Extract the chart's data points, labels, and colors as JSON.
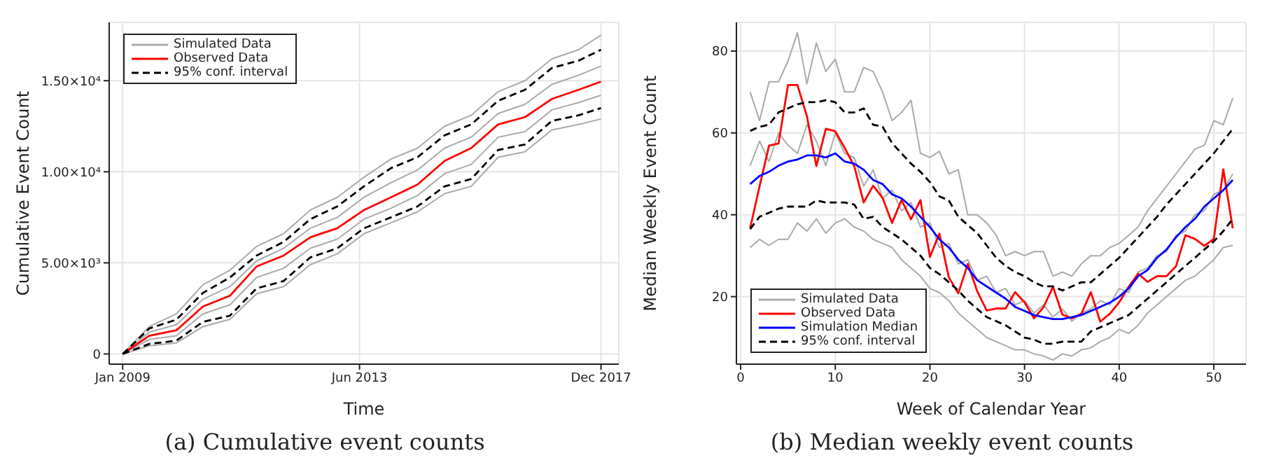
{
  "chart_data": [
    {
      "type": "line",
      "title": "(a) Cumulative event counts",
      "xlabel": "Time",
      "ylabel": "Cumulative Event Count",
      "x": [
        "2009-01",
        "2009-07",
        "2010-01",
        "2010-07",
        "2011-01",
        "2011-07",
        "2012-01",
        "2012-07",
        "2013-01",
        "2013-07",
        "2014-01",
        "2014-07",
        "2015-01",
        "2015-07",
        "2016-01",
        "2016-07",
        "2017-01",
        "2017-07",
        "2017-12"
      ],
      "xlim": [
        "2008-10",
        "2018-04"
      ],
      "xticks": [
        {
          "value": "2009-01",
          "label": "Jan 2009"
        },
        {
          "value": "2013-06",
          "label": "Jun 2013"
        },
        {
          "value": "2017-12",
          "label": "Dec 2017"
        }
      ],
      "ylim": [
        -560,
        18200
      ],
      "yticks": [
        0,
        {
          "value": 5000,
          "label": "5.00×10³"
        },
        {
          "value": 10000,
          "label": "1.00×10⁴"
        },
        {
          "value": 15000,
          "label": "1.50×10⁴"
        }
      ],
      "grid": true,
      "legend": "top left",
      "marker": "none",
      "series": [
        {
          "name": "Simulated Data",
          "color": "#aaaaaa",
          "line_style": "solid",
          "values": [
            0,
            1500,
            2200,
            3800,
            4600,
            5900,
            6600,
            7900,
            8600,
            9700,
            10700,
            11300,
            12500,
            13100,
            14400,
            15000,
            16200,
            16700,
            17500
          ]
        },
        {
          "color": "#aaaaaa",
          "line_style": "solid",
          "values": [
            0,
            1200,
            1600,
            3000,
            3700,
            5100,
            5800,
            6900,
            7500,
            8600,
            9400,
            10100,
            11300,
            11900,
            13200,
            13700,
            14800,
            15300,
            15800
          ]
        },
        {
          "color": "#aaaaaa",
          "line_style": "solid",
          "values": [
            0,
            800,
            1000,
            2200,
            2700,
            4200,
            4700,
            5800,
            6300,
            7400,
            8000,
            8700,
            9900,
            10400,
            11900,
            12200,
            13400,
            13800,
            14200
          ]
        },
        {
          "color": "#aaaaaa",
          "line_style": "solid",
          "values": [
            0,
            450,
            600,
            1500,
            1900,
            3300,
            3700,
            4900,
            5500,
            6600,
            7200,
            7800,
            8800,
            9200,
            10800,
            11100,
            12300,
            12600,
            12900
          ]
        },
        {
          "name": "Observed Data",
          "color": "#ff0000",
          "line_style": "solid",
          "values": [
            0,
            1000,
            1300,
            2600,
            3200,
            4800,
            5400,
            6400,
            6900,
            7900,
            8600,
            9300,
            10600,
            11300,
            12600,
            13000,
            14000,
            14500,
            14950
          ]
        },
        {
          "name": "95% conf. interval",
          "color": "#000000",
          "line_style": "dashed",
          "values": [
            0,
            1400,
            1880,
            3350,
            4200,
            5400,
            6150,
            7400,
            8100,
            9200,
            10200,
            10800,
            12000,
            12600,
            13900,
            14500,
            15700,
            16100,
            16700
          ]
        },
        {
          "color": "#000000",
          "line_style": "dashed",
          "values": [
            0,
            550,
            730,
            1760,
            2100,
            3600,
            4000,
            5300,
            5800,
            6900,
            7500,
            8100,
            9200,
            9600,
            11200,
            11500,
            12800,
            13100,
            13500
          ]
        }
      ]
    },
    {
      "type": "line",
      "title": "(b) Median weekly event counts",
      "xlabel": "Week of Calendar Year",
      "ylabel": "Median Weekly Event Count",
      "x": [
        1,
        2,
        3,
        4,
        5,
        6,
        7,
        8,
        9,
        10,
        11,
        12,
        13,
        14,
        15,
        16,
        17,
        18,
        19,
        20,
        21,
        22,
        23,
        24,
        25,
        26,
        27,
        28,
        29,
        30,
        31,
        32,
        33,
        34,
        35,
        36,
        37,
        38,
        39,
        40,
        41,
        42,
        43,
        44,
        45,
        46,
        47,
        48,
        49,
        50,
        51,
        52
      ],
      "xlim": [
        -0.45,
        53.4
      ],
      "xticks": [
        0,
        10,
        20,
        30,
        40,
        50
      ],
      "ylim": [
        3.5,
        87
      ],
      "yticks": [
        20,
        40,
        60,
        80
      ],
      "grid": true,
      "legend": "bottom left",
      "marker": "none",
      "series": [
        {
          "name": "Simulated Data",
          "color": "#aaaaaa",
          "line_style": "solid",
          "values": [
            70,
            63,
            72.5,
            72.5,
            77.5,
            84.5,
            72,
            82,
            75,
            78,
            70,
            70,
            76,
            75,
            70,
            63,
            65,
            68,
            55,
            54,
            55.5,
            50,
            51,
            40,
            40,
            38,
            35,
            30,
            31,
            30,
            31,
            31,
            25,
            26,
            25,
            28,
            30,
            30,
            32,
            33,
            35,
            37,
            41,
            44,
            47,
            50,
            53,
            56,
            57,
            63,
            62,
            68.5
          ]
        },
        {
          "color": "#aaaaaa",
          "line_style": "solid",
          "values": [
            52,
            58,
            53,
            60,
            57,
            55,
            62,
            58,
            52,
            60,
            55,
            54,
            47,
            51,
            44,
            46,
            41,
            43,
            37,
            38,
            32,
            33,
            28,
            29,
            24,
            25,
            21,
            22,
            18,
            19,
            16,
            18,
            15,
            17,
            14,
            16,
            17,
            19,
            18,
            22,
            21,
            26,
            27,
            30,
            31,
            35,
            36,
            40,
            41,
            45,
            46,
            50
          ]
        },
        {
          "color": "#aaaaaa",
          "line_style": "solid",
          "values": [
            32,
            34,
            32.5,
            34,
            34,
            38,
            36,
            39,
            35.5,
            38,
            39,
            37,
            36,
            34,
            33,
            32,
            29,
            27,
            25,
            22,
            21,
            19,
            16,
            14,
            12,
            10,
            9,
            8,
            7,
            7,
            6,
            5.5,
            4.5,
            6,
            5.5,
            7,
            7.5,
            9,
            10,
            12,
            11,
            13,
            16,
            18,
            20,
            22,
            24,
            25,
            27,
            29,
            32,
            32.5
          ]
        },
        {
          "name": "Observed Data",
          "color": "#ff0000",
          "line_style": "solid",
          "values": [
            36.7,
            47,
            56.9,
            57.4,
            71.7,
            71.7,
            64.1,
            51.9,
            61,
            60.4,
            56.3,
            51.9,
            43,
            47.1,
            44.1,
            38,
            43.6,
            38.9,
            43.6,
            29.7,
            35.4,
            24.7,
            20.8,
            28,
            21.3,
            16.6,
            17.1,
            17.1,
            21.1,
            18.6,
            14.7,
            17.4,
            22.4,
            15.6,
            14.7,
            15.8,
            21.1,
            13.9,
            15.8,
            18.6,
            22.4,
            25.6,
            23.6,
            25,
            25,
            27.4,
            35,
            34.1,
            32.4,
            34.1,
            51.1,
            36.7
          ]
        },
        {
          "name": "Simulation Median",
          "color": "#0000ff",
          "line_style": "solid",
          "values": [
            47.5,
            49.5,
            50.5,
            52,
            53,
            53.5,
            54.5,
            54.5,
            54,
            55,
            53,
            52.5,
            51,
            48.5,
            47.5,
            45,
            44,
            42,
            39.5,
            37,
            34,
            32,
            29,
            27,
            24,
            22.5,
            21,
            19.5,
            17.5,
            16.5,
            15.5,
            15,
            14.5,
            14.5,
            15,
            15.5,
            16.5,
            17.5,
            18.5,
            20,
            22,
            25,
            26.5,
            29.5,
            31.5,
            34.5,
            37,
            39,
            42,
            44,
            46,
            48.5
          ]
        },
        {
          "name": "95% conf. interval",
          "color": "#000000",
          "line_style": "dashed",
          "values": [
            60.5,
            61.5,
            62,
            65,
            66,
            67,
            67.5,
            67.5,
            68,
            67.5,
            65,
            65,
            66,
            62,
            61.5,
            57.5,
            55,
            52.5,
            50.5,
            48,
            44.5,
            43.5,
            39.5,
            37.5,
            35.5,
            32.5,
            29.5,
            27.5,
            26,
            25,
            23.5,
            22.5,
            22.5,
            21.5,
            22.5,
            23.5,
            23.5,
            25.5,
            27.5,
            29.5,
            32,
            34.5,
            37,
            39.5,
            42.5,
            45,
            47.5,
            50,
            52.5,
            55,
            58,
            61
          ]
        },
        {
          "color": "#000000",
          "line_style": "dashed",
          "values": [
            36.5,
            39.5,
            40.5,
            41.5,
            42,
            42,
            42,
            43.5,
            43,
            43,
            43,
            42.5,
            39,
            39.5,
            37,
            35.5,
            34,
            32,
            30,
            27,
            25.5,
            23.5,
            21.5,
            19,
            17,
            15,
            14,
            13,
            11.5,
            10,
            9.5,
            8.5,
            8.5,
            9,
            9,
            9,
            11.5,
            12.5,
            13.5,
            14.5,
            15.5,
            17.5,
            19.5,
            21.5,
            23.5,
            25.5,
            27.5,
            29.5,
            31.5,
            33.5,
            36,
            39
          ]
        }
      ]
    }
  ]
}
